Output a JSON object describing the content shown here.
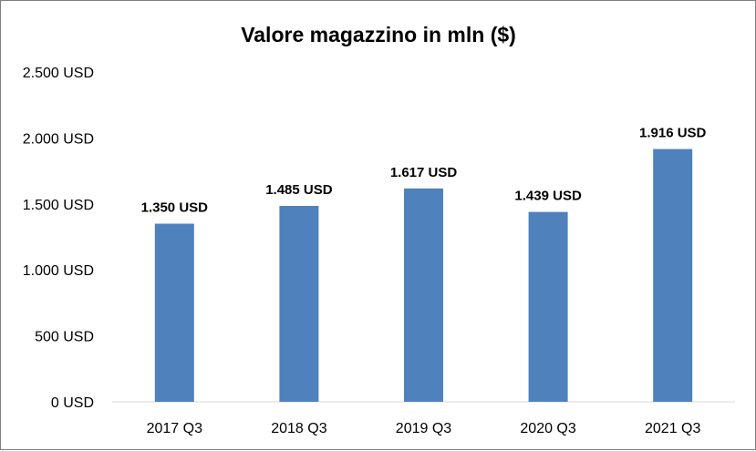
{
  "chart_data": {
    "type": "bar",
    "title": "Valore magazzino in mln ($)",
    "categories": [
      "2017 Q3",
      "2018 Q3",
      "2019 Q3",
      "2020 Q3",
      "2021 Q3"
    ],
    "values": [
      1350,
      1485,
      1617,
      1439,
      1916
    ],
    "data_labels": [
      "1.350 USD",
      "1.485 USD",
      "1.617 USD",
      "1.439 USD",
      "1.916 USD"
    ],
    "yticks": [
      0,
      500,
      1000,
      1500,
      2000,
      2500
    ],
    "ytick_labels": [
      "0 USD",
      "500 USD",
      "1.000 USD",
      "1.500 USD",
      "2.000 USD",
      "2.500 USD"
    ],
    "ylim": [
      0,
      2500
    ],
    "xlabel": "",
    "ylabel": "",
    "grid": false,
    "legend": "none",
    "colors": {
      "bar": "#4f81bd",
      "axis": "#d9d9d9"
    }
  }
}
